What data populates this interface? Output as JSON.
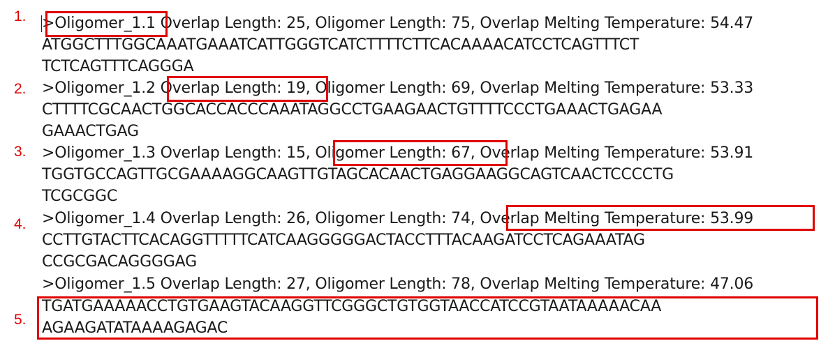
{
  "oligomers": [
    {
      "marker": "1.",
      "header": ">Oligomer_1.1 Overlap Length: 25, Oligomer Length: 75, Overlap Melting Temperature: 54.47",
      "sequence_lines": [
        "ATGGCTTTGGCAAATGAAATCATTGGGTCATCTTTTCTTCACAAAACATCCTCAGTTTCT",
        "TCTCAGTTTCAGGGA"
      ]
    },
    {
      "marker": "2.",
      "header": ">Oligomer_1.2 Overlap Length: 19, Oligomer Length: 69, Overlap Melting Temperature: 53.33",
      "sequence_lines": [
        "CTTTTCGCAACTGGCACCACCCAAATAGGCCTGAAGAACTGTTTTCCCTGAAACTGAGAA",
        "GAAACTGAG"
      ]
    },
    {
      "marker": "3.",
      "header": ">Oligomer_1.3 Overlap Length: 15, Oligomer Length: 67, Overlap Melting Temperature: 53.91",
      "sequence_lines": [
        "TGGTGCCAGTTGCGAAAAGGCAAGTTGTAGCACAACTGAGGAAGGCAGTCAACTCCCCTG",
        "TCGCGGC"
      ]
    },
    {
      "marker": "4.",
      "header": ">Oligomer_1.4 Overlap Length: 26, Oligomer Length: 74, Overlap Melting Temperature: 53.99",
      "sequence_lines": [
        "CCTTGTACTTCACAGGTTTTTCATCAAGGGGGACTACCTTTACAAGATCCTCAGAAATAG",
        "CCGCGACAGGGGAG"
      ]
    },
    {
      "marker": "5.",
      "header": ">Oligomer_1.5 Overlap Length: 27, Oligomer Length: 78, Overlap Melting Temperature: 47.06",
      "sequence_lines": [
        "TGATGAAAAACCTGTGAAGTACAAGGTTCGGGCTGTGGTAACCATCCGTAATAAAAACAA",
        "AGAAGATATAAAAGAGAC"
      ]
    }
  ],
  "highlight_color": "#e00000",
  "text_color": "#1a1a1a"
}
